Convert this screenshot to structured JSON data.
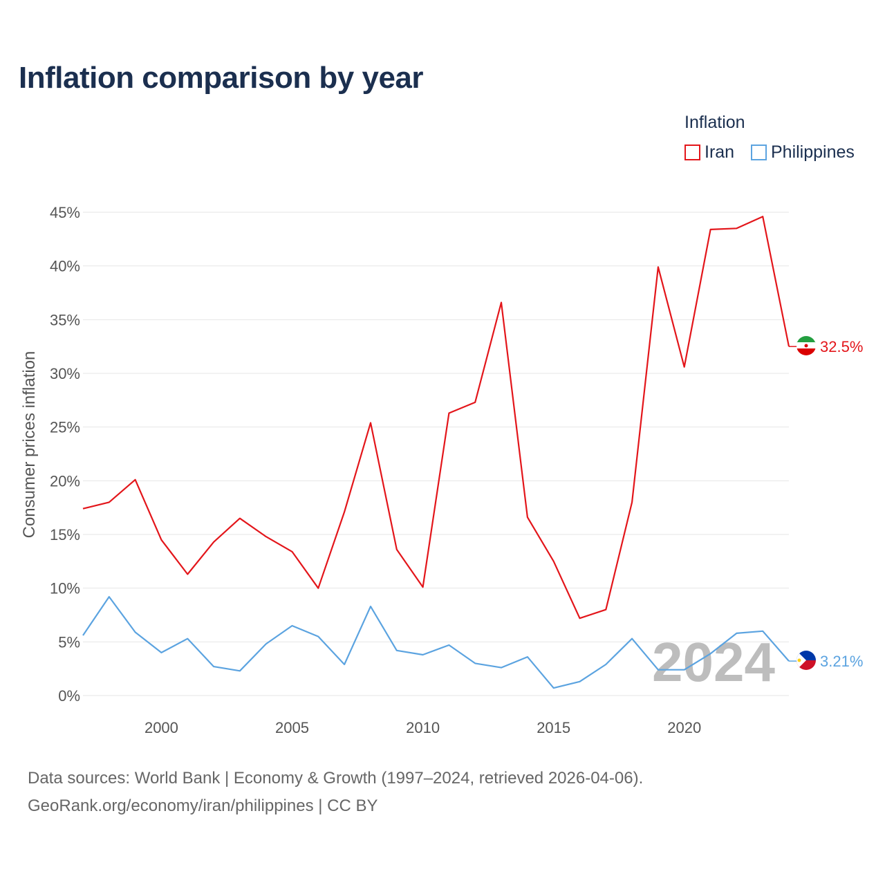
{
  "title": "Inflation comparison by year",
  "legend": {
    "title": "Inflation",
    "items": [
      {
        "label": "Iran",
        "color": "#e3151a"
      },
      {
        "label": "Philippines",
        "color": "#5ba3e0"
      }
    ]
  },
  "source": {
    "line1": "Data sources: World Bank | Economy & Growth (1997–2024, retrieved 2026-04-06).",
    "line2": "GeoRank.org/economy/iran/philippines | CC BY"
  },
  "chart_data": {
    "type": "line",
    "title": "Inflation comparison by year",
    "xlabel": "",
    "ylabel": "Consumer prices inflation",
    "xlim": [
      1997,
      2024
    ],
    "ylim": [
      0,
      45
    ],
    "x_ticks": [
      2000,
      2005,
      2010,
      2015,
      2020
    ],
    "y_ticks": [
      0,
      5,
      10,
      15,
      20,
      25,
      30,
      35,
      40,
      45
    ],
    "y_tick_labels": [
      "0%",
      "5%",
      "10%",
      "15%",
      "20%",
      "25%",
      "30%",
      "35%",
      "40%",
      "45%"
    ],
    "grid": true,
    "watermark_year": "2024",
    "x": [
      1997,
      1998,
      1999,
      2000,
      2001,
      2002,
      2003,
      2004,
      2005,
      2006,
      2007,
      2008,
      2009,
      2010,
      2011,
      2012,
      2013,
      2014,
      2015,
      2016,
      2017,
      2018,
      2019,
      2020,
      2021,
      2022,
      2023,
      2024
    ],
    "series": [
      {
        "name": "Iran",
        "color": "#e3151a",
        "flag": "iran-flag-icon",
        "end_label": "32.5%",
        "values": [
          17.4,
          18.0,
          20.1,
          14.5,
          11.3,
          14.3,
          16.5,
          14.8,
          13.4,
          10.0,
          17.1,
          25.4,
          13.6,
          10.1,
          26.3,
          27.3,
          36.6,
          16.6,
          12.5,
          7.2,
          8.0,
          18.0,
          39.9,
          30.6,
          43.4,
          43.5,
          44.6,
          32.5
        ]
      },
      {
        "name": "Philippines",
        "color": "#5ba3e0",
        "flag": "philippines-flag-icon",
        "end_label": "3.21%",
        "values": [
          5.6,
          9.2,
          5.9,
          4.0,
          5.3,
          2.7,
          2.3,
          4.8,
          6.5,
          5.5,
          2.9,
          8.3,
          4.2,
          3.8,
          4.7,
          3.0,
          2.6,
          3.6,
          0.7,
          1.3,
          2.9,
          5.3,
          2.4,
          2.4,
          3.9,
          5.8,
          6.0,
          3.21
        ]
      }
    ]
  }
}
